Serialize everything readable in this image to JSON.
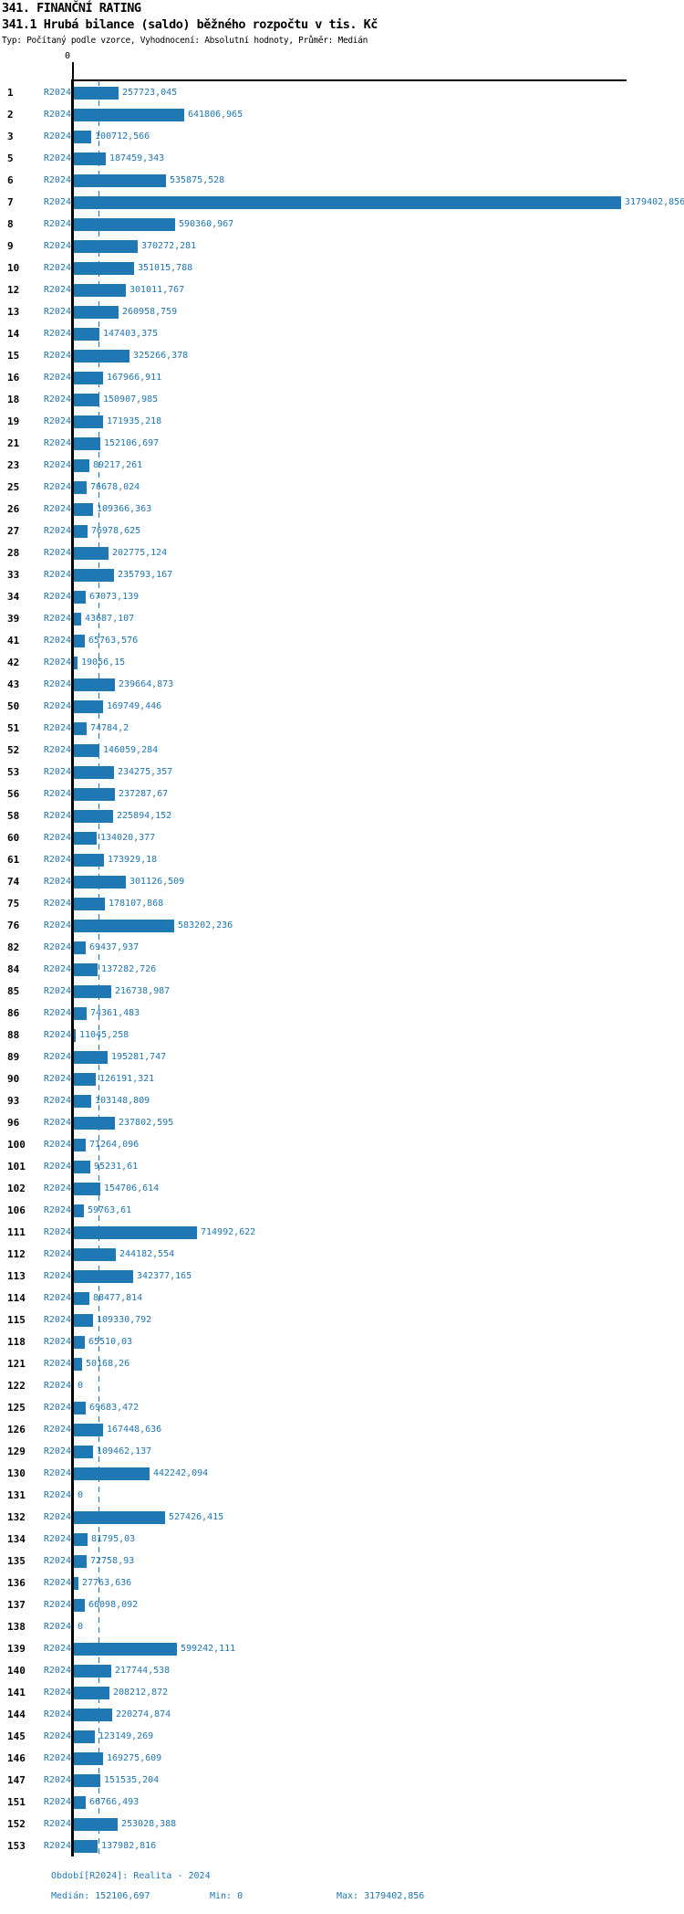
{
  "header": {
    "title1": "341. FINANČNÍ RATING",
    "title2": "341.1 Hrubá bilance (saldo) běžného rozpočtu v tis. Kč",
    "meta": "Typ: Počítaný podle vzorce, Vyhodnocení: Absolutní hodnoty, Průměr: Medián"
  },
  "chart_data": {
    "type": "bar",
    "orientation": "horizontal",
    "title": "341.1 Hrubá bilance (saldo) běžného rozpočtu v tis. Kč",
    "period": "R2024",
    "bar_color": "#1f77b4",
    "axis": {
      "zero_label": "0",
      "min": 0,
      "max": 3179402.856,
      "median": 152106.697,
      "grid": "median-dashed-line"
    },
    "rows": [
      {
        "id": "1",
        "value": 257723.045,
        "label": "257723,045"
      },
      {
        "id": "2",
        "value": 641806.965,
        "label": "641806,965"
      },
      {
        "id": "3",
        "value": 100712.566,
        "label": "100712,566"
      },
      {
        "id": "5",
        "value": 187459.343,
        "label": "187459,343"
      },
      {
        "id": "6",
        "value": 535875.528,
        "label": "535875,528"
      },
      {
        "id": "7",
        "value": 3179402.856,
        "label": "3179402,856"
      },
      {
        "id": "8",
        "value": 590360.967,
        "label": "590360,967"
      },
      {
        "id": "9",
        "value": 370272.281,
        "label": "370272,281"
      },
      {
        "id": "10",
        "value": 351015.788,
        "label": "351015,788"
      },
      {
        "id": "12",
        "value": 301011.767,
        "label": "301011,767"
      },
      {
        "id": "13",
        "value": 260958.759,
        "label": "260958,759"
      },
      {
        "id": "14",
        "value": 147403.375,
        "label": "147403,375"
      },
      {
        "id": "15",
        "value": 325266.378,
        "label": "325266,378"
      },
      {
        "id": "16",
        "value": 167966.911,
        "label": "167966,911"
      },
      {
        "id": "18",
        "value": 150907.985,
        "label": "150907,985"
      },
      {
        "id": "19",
        "value": 171935.218,
        "label": "171935,218"
      },
      {
        "id": "21",
        "value": 152106.697,
        "label": "152106,697"
      },
      {
        "id": "23",
        "value": 89217.261,
        "label": "89217,261"
      },
      {
        "id": "25",
        "value": 76678.024,
        "label": "76678,024"
      },
      {
        "id": "26",
        "value": 109366.363,
        "label": "109366,363"
      },
      {
        "id": "27",
        "value": 76978.625,
        "label": "76978,625"
      },
      {
        "id": "28",
        "value": 202775.124,
        "label": "202775,124"
      },
      {
        "id": "33",
        "value": 235793.167,
        "label": "235793,167"
      },
      {
        "id": "34",
        "value": 67073.139,
        "label": "67073,139"
      },
      {
        "id": "39",
        "value": 43687.107,
        "label": "43687,107"
      },
      {
        "id": "41",
        "value": 65763.576,
        "label": "65763,576"
      },
      {
        "id": "42",
        "value": 19056.15,
        "label": "19056,15"
      },
      {
        "id": "43",
        "value": 239664.873,
        "label": "239664,873"
      },
      {
        "id": "50",
        "value": 169749.446,
        "label": "169749,446"
      },
      {
        "id": "51",
        "value": 74784.2,
        "label": "74784,2"
      },
      {
        "id": "52",
        "value": 146059.284,
        "label": "146059,284"
      },
      {
        "id": "53",
        "value": 234275.357,
        "label": "234275,357"
      },
      {
        "id": "56",
        "value": 237287.67,
        "label": "237287,67"
      },
      {
        "id": "58",
        "value": 225894.152,
        "label": "225894,152"
      },
      {
        "id": "60",
        "value": 134020.377,
        "label": "134020,377"
      },
      {
        "id": "61",
        "value": 173929.18,
        "label": "173929,18"
      },
      {
        "id": "74",
        "value": 301126.509,
        "label": "301126,509"
      },
      {
        "id": "75",
        "value": 178107.868,
        "label": "178107,868"
      },
      {
        "id": "76",
        "value": 583202.236,
        "label": "583202,236"
      },
      {
        "id": "82",
        "value": 69437.937,
        "label": "69437,937"
      },
      {
        "id": "84",
        "value": 137282.726,
        "label": "137282,726"
      },
      {
        "id": "85",
        "value": 216738.987,
        "label": "216738,987"
      },
      {
        "id": "86",
        "value": 74361.483,
        "label": "74361,483"
      },
      {
        "id": "88",
        "value": 11045.258,
        "label": "11045,258"
      },
      {
        "id": "89",
        "value": 195281.747,
        "label": "195281,747"
      },
      {
        "id": "90",
        "value": 126191.321,
        "label": "126191,321"
      },
      {
        "id": "93",
        "value": 103148.809,
        "label": "103148,809"
      },
      {
        "id": "96",
        "value": 237802.595,
        "label": "237802,595"
      },
      {
        "id": "100",
        "value": 71264.096,
        "label": "71264,096"
      },
      {
        "id": "101",
        "value": 95231.61,
        "label": "95231,61"
      },
      {
        "id": "102",
        "value": 154706.614,
        "label": "154706,614"
      },
      {
        "id": "106",
        "value": 59763.61,
        "label": "59763,61"
      },
      {
        "id": "111",
        "value": 714992.622,
        "label": "714992,622"
      },
      {
        "id": "112",
        "value": 244182.554,
        "label": "244182,554"
      },
      {
        "id": "113",
        "value": 342377.165,
        "label": "342377,165"
      },
      {
        "id": "114",
        "value": 88477.814,
        "label": "88477,814"
      },
      {
        "id": "115",
        "value": 109330.792,
        "label": "109330,792"
      },
      {
        "id": "118",
        "value": 65510.03,
        "label": "65510,03"
      },
      {
        "id": "121",
        "value": 50168.26,
        "label": "50168,26"
      },
      {
        "id": "122",
        "value": 0,
        "label": "0"
      },
      {
        "id": "125",
        "value": 69683.472,
        "label": "69683,472"
      },
      {
        "id": "126",
        "value": 167448.636,
        "label": "167448,636"
      },
      {
        "id": "129",
        "value": 109462.137,
        "label": "109462,137"
      },
      {
        "id": "130",
        "value": 442242.094,
        "label": "442242,094"
      },
      {
        "id": "131",
        "value": 0,
        "label": "0"
      },
      {
        "id": "132",
        "value": 527426.415,
        "label": "527426,415"
      },
      {
        "id": "134",
        "value": 81795.03,
        "label": "81795,03"
      },
      {
        "id": "135",
        "value": 72758.93,
        "label": "72758,93"
      },
      {
        "id": "136",
        "value": 27763.636,
        "label": "27763,636"
      },
      {
        "id": "137",
        "value": 66098.092,
        "label": "66098,092"
      },
      {
        "id": "138",
        "value": 0,
        "label": "0"
      },
      {
        "id": "139",
        "value": 599242.111,
        "label": "599242,111"
      },
      {
        "id": "140",
        "value": 217744.538,
        "label": "217744,538"
      },
      {
        "id": "141",
        "value": 208212.872,
        "label": "208212,872"
      },
      {
        "id": "144",
        "value": 220274.874,
        "label": "220274,874"
      },
      {
        "id": "145",
        "value": 123149.269,
        "label": "123149,269"
      },
      {
        "id": "146",
        "value": 169275.609,
        "label": "169275,609"
      },
      {
        "id": "147",
        "value": 151535.204,
        "label": "151535,204"
      },
      {
        "id": "151",
        "value": 66766.493,
        "label": "66766,493"
      },
      {
        "id": "152",
        "value": 253028.388,
        "label": "253028,388"
      },
      {
        "id": "153",
        "value": 137982.816,
        "label": "137982,816"
      }
    ]
  },
  "footer": {
    "period_info": "Období[R2024]: Realita - 2024",
    "median": "Medián: 152106,697",
    "min": "Min: 0",
    "max": "Max: 3179402,856"
  }
}
